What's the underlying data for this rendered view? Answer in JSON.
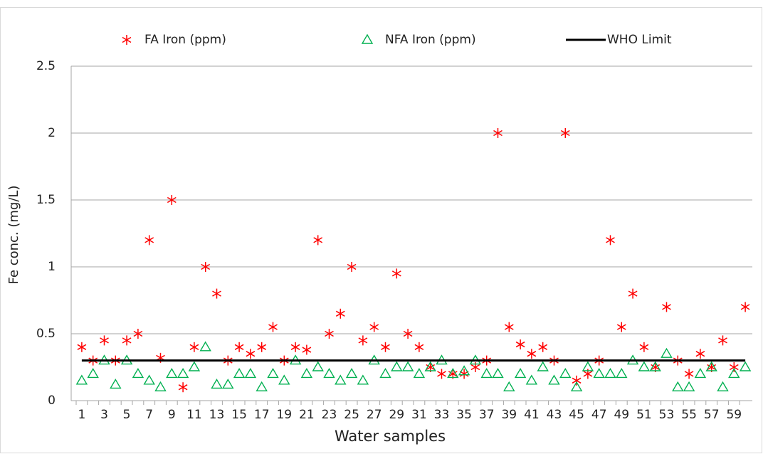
{
  "chart_data": {
    "type": "scatter",
    "x_label": "Water samples",
    "y_label": "Fe conc. (mg/L)",
    "categories": [
      1,
      null,
      3,
      null,
      5,
      null,
      7,
      null,
      9,
      null,
      11,
      null,
      13,
      null,
      15,
      null,
      17,
      null,
      19,
      null,
      21,
      null,
      23,
      null,
      25,
      null,
      27,
      null,
      29,
      null,
      31,
      null,
      33,
      null,
      35,
      null,
      37,
      null,
      39,
      null,
      41,
      null,
      43,
      null,
      45,
      null,
      47,
      null,
      49,
      null,
      51,
      null,
      53,
      null,
      55,
      null,
      57,
      null,
      59,
      null
    ],
    "series": [
      {
        "name": "FA Iron (ppm)",
        "color": "#ff0000",
        "marker": "asterisk",
        "values": [
          0.4,
          0.3,
          0.45,
          0.3,
          0.45,
          0.5,
          1.2,
          0.32,
          1.5,
          0.1,
          0.4,
          1.0,
          0.8,
          0.3,
          0.4,
          0.35,
          0.4,
          0.55,
          0.3,
          0.4,
          0.38,
          1.2,
          0.5,
          0.65,
          1.0,
          0.45,
          0.55,
          0.4,
          0.95,
          0.5,
          0.4,
          0.25,
          0.2,
          0.2,
          0.2,
          0.25,
          0.3,
          2.0,
          0.55,
          0.42,
          0.35,
          0.4,
          0.3,
          2.0,
          0.15,
          0.2,
          0.3,
          1.2,
          0.55,
          0.8,
          0.4,
          0.25,
          0.7,
          0.3,
          0.2,
          0.35,
          0.25,
          0.45,
          0.25,
          0.7
        ]
      },
      {
        "name": "NFA Iron (ppm)",
        "color": "#00b050",
        "marker": "triangle",
        "values": [
          0.15,
          0.2,
          0.3,
          0.12,
          0.3,
          0.2,
          0.15,
          0.1,
          0.2,
          0.2,
          0.25,
          0.4,
          0.12,
          0.12,
          0.2,
          0.2,
          0.1,
          0.2,
          0.15,
          0.3,
          0.2,
          0.25,
          0.2,
          0.15,
          0.2,
          0.15,
          0.3,
          0.2,
          0.25,
          0.25,
          0.2,
          0.25,
          0.3,
          0.2,
          0.22,
          0.3,
          0.2,
          0.2,
          0.1,
          0.2,
          0.15,
          0.25,
          0.15,
          0.2,
          0.1,
          0.25,
          0.2,
          0.2,
          0.2,
          0.3,
          0.25,
          0.25,
          0.35,
          0.1,
          0.1,
          0.2,
          0.25,
          0.1,
          0.2,
          0.25
        ]
      },
      {
        "name": "WHO Limit",
        "color": "#000000",
        "marker": "line",
        "values": [
          0.3,
          0.3,
          0.3,
          0.3,
          0.3,
          0.3,
          0.3,
          0.3,
          0.3,
          0.3,
          0.3,
          0.3,
          0.3,
          0.3,
          0.3,
          0.3,
          0.3,
          0.3,
          0.3,
          0.3,
          0.3,
          0.3,
          0.3,
          0.3,
          0.3,
          0.3,
          0.3,
          0.3,
          0.3,
          0.3,
          0.3,
          0.3,
          0.3,
          0.3,
          0.3,
          0.3,
          0.3,
          0.3,
          0.3,
          0.3,
          0.3,
          0.3,
          0.3,
          0.3,
          0.3,
          0.3,
          0.3,
          0.3,
          0.3,
          0.3,
          0.3,
          0.3,
          0.3,
          0.3,
          0.3,
          0.3,
          0.3,
          0.3,
          0.3,
          0.3
        ]
      }
    ],
    "ylim": [
      0,
      2.5
    ],
    "yticks": [
      0,
      0.5,
      1,
      1.5,
      2,
      2.5
    ],
    "grid": true,
    "legend": "top"
  }
}
